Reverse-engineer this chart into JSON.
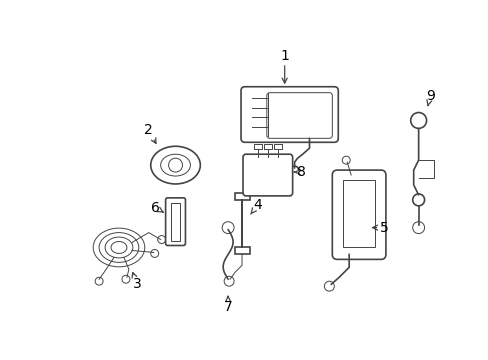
{
  "background_color": "#ffffff",
  "line_color": "#444444",
  "text_color": "#000000",
  "fig_width": 4.89,
  "fig_height": 3.6,
  "dpi": 100
}
